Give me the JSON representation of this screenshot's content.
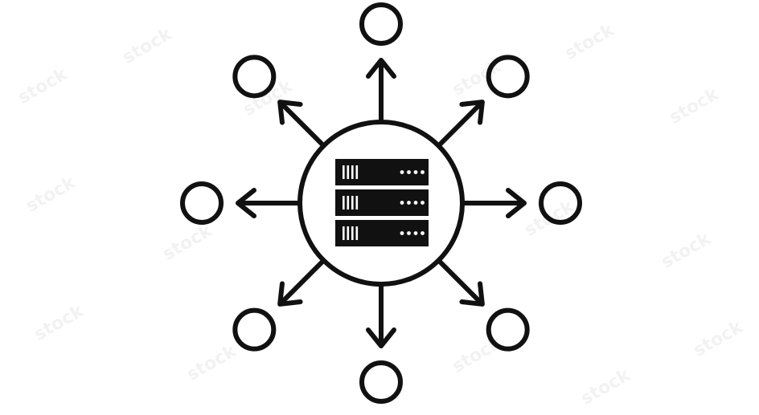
{
  "colors": {
    "background": "#ffffff",
    "stroke": "#111111",
    "server_fill": "#111111",
    "server_detail": "#ffffff"
  },
  "diagram": {
    "hub": {
      "icon": "server-rack-icon",
      "server_units": 3
    },
    "spokes": [
      {
        "direction": "north"
      },
      {
        "direction": "north-east"
      },
      {
        "direction": "east"
      },
      {
        "direction": "south-east"
      },
      {
        "direction": "south"
      },
      {
        "direction": "south-west"
      },
      {
        "direction": "west"
      },
      {
        "direction": "north-west"
      }
    ],
    "endpoint_icon": "circle-node-icon",
    "arrow_icon": "arrow-icon"
  },
  "watermark": {
    "text": "stock",
    "kind": "repeating-watermark"
  }
}
